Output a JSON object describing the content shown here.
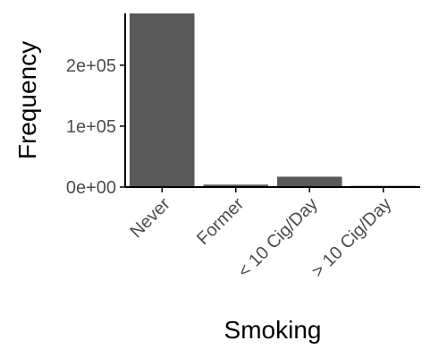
{
  "chart_data": {
    "type": "bar",
    "xlabel": "Smoking",
    "ylabel": "Frequency",
    "categories": [
      "Never",
      "Former",
      "< 10 Cig/Day",
      "> 10 Cig/Day"
    ],
    "values": [
      285000,
      4000,
      17000,
      2000
    ],
    "ylim": [
      0,
      285000
    ],
    "yticks": [
      0,
      100000,
      200000
    ],
    "ytick_labels": [
      "0e+00",
      "1e+05",
      "2e+05"
    ],
    "grid": false,
    "legend": "none",
    "bar_color": "#595959",
    "axis_color": "#000000"
  }
}
